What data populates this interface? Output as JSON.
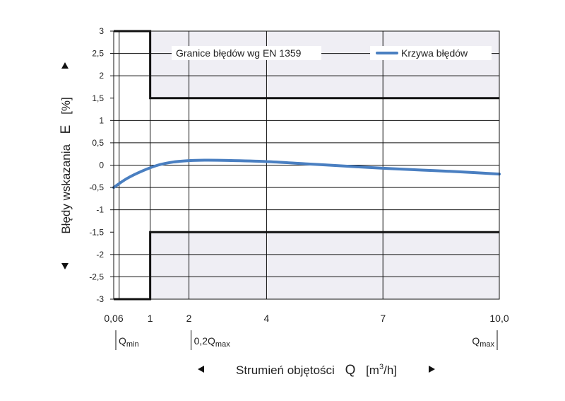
{
  "chart_data": {
    "type": "line",
    "ylabel": "Błędy wskazania",
    "ylabel_symbol": "E",
    "ylabel_unit": "[%]",
    "xlabel": "Strumień objętości",
    "xlabel_symbol": "Q",
    "xlabel_unit_pre": "[m",
    "xlabel_unit_sup": "3",
    "xlabel_unit_post": "/h]",
    "ylim": [
      -3,
      3
    ],
    "xlim": [
      0.06,
      10.0
    ],
    "yticks": [
      3,
      2.5,
      2,
      1.5,
      1,
      0.5,
      0,
      -0.5,
      -1,
      -1.5,
      -2,
      -2.5,
      -3
    ],
    "ytick_labels": [
      "3",
      "2,5",
      "2",
      "1,5",
      "1",
      "0,5",
      "0",
      "-0,5",
      "-1",
      "-1,5",
      "-2",
      "-2,5",
      "-3"
    ],
    "xticks": [
      0.06,
      1,
      2,
      4,
      7,
      10.0
    ],
    "xtick_labels": [
      "0,06",
      "1",
      "2",
      "4",
      "7",
      "10,0"
    ],
    "x_gridlines": [
      0.06,
      0.2,
      1,
      2,
      4,
      7
    ],
    "y_gridlines": [
      2.5,
      2,
      1,
      0.5,
      0,
      -0.5,
      -1,
      -2,
      -2.5
    ],
    "grid": true,
    "x_markers": [
      {
        "x": 0.06,
        "label": "Q",
        "sub": "min",
        "anchor": "start"
      },
      {
        "x": 2,
        "label": "0,2Q",
        "sub": "max",
        "anchor": "start"
      },
      {
        "x": 10.0,
        "label": "Q",
        "sub": "max",
        "anchor": "end"
      }
    ],
    "limits": {
      "name": "Granice błędów wg EN 1359",
      "low_flow_bound": 3,
      "high_flow_bound": 1.5,
      "transition_x": 1
    },
    "series": [
      {
        "name": "Krzywa błędów",
        "color": "#4a7fc1",
        "x": [
          0.06,
          0.4,
          0.8,
          1.2,
          1.6,
          2.0,
          2.4,
          3.0,
          4.0,
          5.0,
          6.0,
          7.0,
          8.0,
          9.0,
          10.0
        ],
        "y": [
          -0.5,
          -0.3,
          -0.13,
          0.0,
          0.07,
          0.1,
          0.11,
          0.105,
          0.08,
          0.03,
          -0.02,
          -0.07,
          -0.11,
          -0.15,
          -0.2
        ]
      }
    ],
    "legend": "top-right"
  }
}
